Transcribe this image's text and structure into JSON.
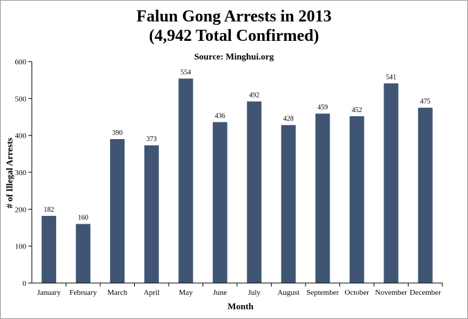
{
  "chart_data": {
    "type": "bar",
    "title_line1": "Falun Gong Arrests in 2013",
    "title_line2": "(4,942 Total Confirmed)",
    "subtitle": "Source: Minghui.org",
    "xlabel": "Month",
    "ylabel": "# of Illegal Arrests",
    "categories": [
      "January",
      "February",
      "March",
      "April",
      "May",
      "June",
      "July",
      "August",
      "September",
      "October",
      "November",
      "December"
    ],
    "values": [
      182,
      160,
      390,
      373,
      554,
      436,
      492,
      428,
      459,
      452,
      541,
      475
    ],
    "ylim": [
      0,
      600
    ],
    "yticks": [
      0,
      100,
      200,
      300,
      400,
      500,
      600
    ],
    "bar_color": "#3f5573",
    "grid": false,
    "legend": "none"
  }
}
